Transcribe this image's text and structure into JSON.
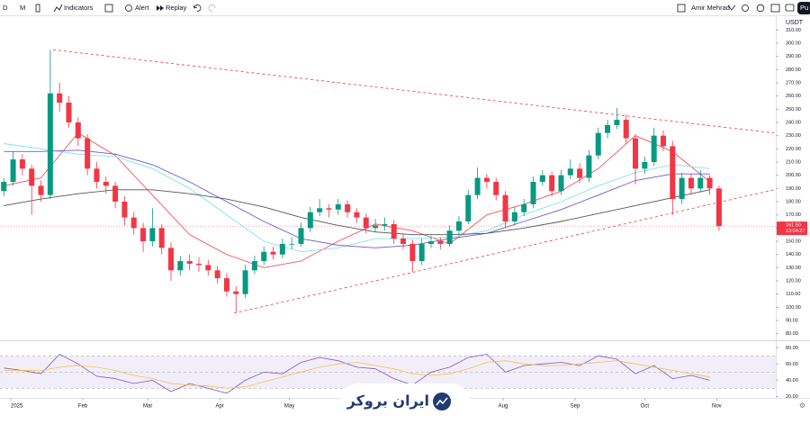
{
  "toolbar": {
    "interval": "D",
    "chart_style": "M",
    "items": [
      "Indicators",
      "Alert",
      "Replay"
    ],
    "user": "Amir Mehrad",
    "button": "Pu"
  },
  "logo": "ایران بروکر",
  "chart_data": [
    {
      "type": "candlestick",
      "currency": "USDT",
      "x": [
        -3,
        1,
        5,
        9,
        13,
        17,
        21,
        25,
        29,
        33,
        37,
        41,
        45,
        49,
        53,
        57,
        61,
        65,
        69,
        73,
        77,
        81,
        85,
        89,
        93,
        97,
        101,
        105,
        109,
        113,
        117,
        121,
        125,
        129,
        133,
        137,
        141,
        145,
        149,
        153,
        157,
        161,
        165,
        169,
        173,
        177,
        181,
        185,
        189,
        193,
        197,
        201,
        205,
        209,
        213,
        217,
        221,
        225,
        229,
        233,
        237,
        241,
        245,
        249,
        253,
        257,
        261,
        265,
        269,
        273,
        277,
        281,
        285,
        289,
        293,
        297,
        301,
        305
      ],
      "open": [
        188,
        195,
        212,
        205,
        192,
        185,
        262,
        255,
        240,
        228,
        205,
        195,
        192,
        180,
        168,
        160,
        150,
        160,
        145,
        128,
        135,
        133,
        132,
        128,
        122,
        112,
        110,
        128,
        135,
        142,
        140,
        148,
        148,
        160,
        172,
        175,
        174,
        178,
        172,
        168,
        160,
        162,
        163,
        152,
        148,
        135,
        148,
        150,
        148,
        158,
        165,
        185,
        198,
        195,
        185,
        165,
        172,
        178,
        195,
        200,
        188,
        200,
        205,
        198,
        215,
        232,
        238,
        242,
        228,
        205,
        210,
        230,
        222,
        182,
        198,
        190,
        198,
        190
      ],
      "high": [
        198,
        218,
        216,
        208,
        196,
        295,
        270,
        260,
        244,
        231,
        210,
        199,
        195,
        184,
        172,
        164,
        175,
        163,
        149,
        139,
        140,
        138,
        136,
        131,
        126,
        116,
        132,
        139,
        146,
        146,
        152,
        153,
        164,
        176,
        182,
        178,
        182,
        181,
        175,
        171,
        167,
        168,
        166,
        156,
        151,
        152,
        154,
        153,
        162,
        169,
        189,
        206,
        201,
        198,
        188,
        176,
        182,
        199,
        204,
        203,
        204,
        212,
        209,
        219,
        236,
        242,
        251,
        246,
        231,
        214,
        236,
        234,
        226,
        202,
        201,
        204,
        200,
        192
      ],
      "low": [
        184,
        192,
        200,
        170,
        180,
        182,
        248,
        236,
        222,
        200,
        190,
        186,
        175,
        162,
        155,
        142,
        146,
        140,
        120,
        124,
        128,
        127,
        124,
        118,
        108,
        96,
        107,
        125,
        132,
        136,
        137,
        144,
        146,
        157,
        169,
        168,
        170,
        168,
        164,
        156,
        157,
        158,
        148,
        144,
        127,
        132,
        145,
        144,
        146,
        155,
        163,
        182,
        190,
        181,
        160,
        162,
        169,
        175,
        192,
        184,
        185,
        197,
        194,
        195,
        212,
        228,
        235,
        224,
        193,
        201,
        207,
        218,
        170,
        178,
        185,
        187,
        185,
        158
      ],
      "close": [
        195,
        212,
        205,
        192,
        185,
        262,
        255,
        240,
        228,
        205,
        195,
        192,
        180,
        168,
        160,
        150,
        160,
        145,
        128,
        135,
        133,
        132,
        128,
        122,
        112,
        110,
        128,
        135,
        142,
        140,
        148,
        148,
        160,
        172,
        175,
        174,
        178,
        172,
        168,
        160,
        162,
        163,
        152,
        148,
        135,
        148,
        150,
        148,
        158,
        165,
        185,
        198,
        195,
        185,
        165,
        172,
        178,
        195,
        200,
        188,
        200,
        205,
        198,
        215,
        232,
        238,
        242,
        228,
        205,
        210,
        230,
        222,
        182,
        198,
        190,
        198,
        190,
        161.5
      ],
      "up_color": "#089981",
      "down_color": "#f23645",
      "xlim": [
        -4.65,
        329.45
      ],
      "xticks": [
        {
          "value": 0,
          "label": "2025"
        },
        {
          "value": 31,
          "label": "Feb"
        },
        {
          "value": 59,
          "label": "Mar"
        },
        {
          "value": 90,
          "label": "Apr"
        },
        {
          "value": 120,
          "label": "May"
        },
        {
          "value": 212,
          "label": "Aug"
        },
        {
          "value": 243,
          "label": "Sep"
        },
        {
          "value": 273,
          "label": "Oct"
        },
        {
          "value": 304,
          "label": "Nov"
        }
      ],
      "ylim": [
        80,
        310
      ],
      "yticks": [
        {
          "value": 80,
          "label": "80.00"
        },
        {
          "value": 90,
          "label": "90.00"
        },
        {
          "value": 100,
          "label": "100.00"
        },
        {
          "value": 110,
          "label": "110.00"
        },
        {
          "value": 120,
          "label": "120.00"
        },
        {
          "value": 130,
          "label": "130.00"
        },
        {
          "value": 140,
          "label": "140.00"
        },
        {
          "value": 150,
          "label": "150.00"
        },
        {
          "value": 160,
          "label": "160.00"
        },
        {
          "value": 170,
          "label": "170.00"
        },
        {
          "value": 180,
          "label": "180.00"
        },
        {
          "value": 190,
          "label": "190.00"
        },
        {
          "value": 200,
          "label": "200.00"
        },
        {
          "value": 210,
          "label": "210.00"
        },
        {
          "value": 220,
          "label": "220.00"
        },
        {
          "value": 230,
          "label": "230.00"
        },
        {
          "value": 240,
          "label": "240.00"
        },
        {
          "value": 250,
          "label": "250.00"
        },
        {
          "value": 260,
          "label": "260.00"
        },
        {
          "value": 270,
          "label": "270.00"
        },
        {
          "value": 280,
          "label": "280.00"
        },
        {
          "value": 290,
          "label": "290.00"
        },
        {
          "value": 300,
          "label": "300.00"
        },
        {
          "value": 310,
          "label": "310.00"
        }
      ],
      "last_price": {
        "value": 161.5,
        "label": "161.50"
      },
      "countdown": "13:04:27",
      "ma_x": [
        -3,
        13,
        29,
        45,
        61,
        77,
        93,
        109,
        125,
        141,
        157,
        173,
        189,
        205,
        221,
        237,
        253,
        269,
        285,
        301
      ],
      "moving_averages": [
        {
          "color": "#f2545b",
          "values": [
            192,
            198,
            232,
            215,
            185,
            155,
            140,
            130,
            135,
            150,
            163,
            158,
            148,
            170,
            178,
            188,
            205,
            230,
            218,
            195
          ]
        },
        {
          "color": "#7fe3ea",
          "values": [
            224,
            220,
            216,
            214,
            205,
            190,
            170,
            150,
            142,
            145,
            152,
            152,
            153,
            158,
            170,
            180,
            192,
            202,
            208,
            205
          ]
        },
        {
          "color": "#6a5acd",
          "values": [
            218,
            218,
            219,
            216,
            208,
            195,
            180,
            165,
            152,
            147,
            145,
            147,
            152,
            156,
            165,
            174,
            185,
            196,
            201,
            201
          ]
        },
        {
          "color": "#555555",
          "values": [
            177,
            182,
            186,
            189,
            189,
            186,
            182,
            176,
            168,
            162,
            157,
            155,
            155,
            156,
            160,
            165,
            171,
            177,
            183,
            189
          ]
        }
      ],
      "trendlines": [
        {
          "color": "#f23645",
          "x": [
            18.2,
            328.7
          ],
          "values": [
            295,
            232
          ]
        },
        {
          "color": "#f23645",
          "x": [
            96.1,
            328.7
          ],
          "values": [
            95.5,
            189
          ]
        }
      ]
    },
    {
      "type": "line",
      "x": [
        -3,
        5,
        13,
        21,
        29,
        37,
        45,
        53,
        61,
        69,
        77,
        85,
        93,
        101,
        109,
        117,
        125,
        133,
        141,
        149,
        157,
        165,
        173,
        181,
        189,
        197,
        205,
        213,
        221,
        229,
        237,
        245,
        253,
        261,
        269,
        277,
        285,
        293,
        301
      ],
      "lines": [
        {
          "color": "#7e57c2",
          "values": [
            55,
            52,
            48,
            72,
            60,
            45,
            42,
            36,
            40,
            26,
            36,
            30,
            24,
            40,
            50,
            48,
            62,
            68,
            64,
            56,
            54,
            42,
            34,
            50,
            56,
            68,
            72,
            50,
            58,
            60,
            62,
            58,
            70,
            66,
            48,
            58,
            42,
            46,
            40
          ]
        },
        {
          "color": "#f5c048",
          "values": [
            52,
            52,
            52,
            56,
            58,
            56,
            52,
            46,
            42,
            36,
            34,
            33,
            30,
            32,
            38,
            44,
            50,
            56,
            60,
            62,
            58,
            54,
            48,
            46,
            48,
            54,
            62,
            64,
            60,
            58,
            58,
            60,
            62,
            64,
            60,
            56,
            52,
            48,
            44
          ]
        }
      ],
      "band": [
        30,
        70
      ],
      "midline": 50,
      "ylim": [
        16,
        87
      ],
      "yticks": [
        {
          "value": 20,
          "label": "20.00"
        },
        {
          "value": 40,
          "label": "40.00"
        },
        {
          "value": 60,
          "label": "60.00"
        },
        {
          "value": 80,
          "label": "80.00"
        }
      ]
    }
  ]
}
